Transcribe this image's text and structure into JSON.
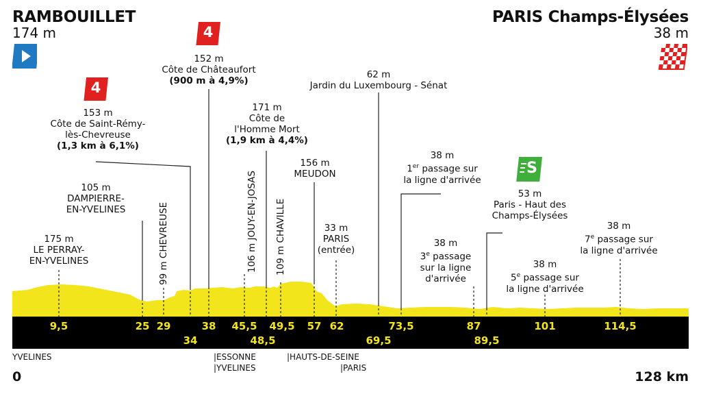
{
  "start": {
    "name": "RAMBOUILLET",
    "altitude": "174 m"
  },
  "finish": {
    "name": "PARIS Champs-Élysées",
    "altitude": "38 m"
  },
  "colors": {
    "profile": "#f3e51b",
    "band": "#000000",
    "km_text": "#f3e51b",
    "climb_badge": "#e0211f",
    "sprint_badge": "#3fae3a",
    "start_flag": "#1f7ac1"
  },
  "icons": {
    "start": "start-play-icon",
    "finish": "checkered-flag-icon",
    "climb": "category-4-climb-icon",
    "sprint": "intermediate-sprint-icon"
  },
  "climb_badges": [
    {
      "label": "4"
    },
    {
      "label": "4"
    }
  ],
  "sprint_badge": {
    "label": "S"
  },
  "labels": {
    "perray": {
      "alt": "175 m",
      "l1": "LE PERRAY-",
      "l2": "EN-YVELINES"
    },
    "dampierre": {
      "alt": "105 m",
      "l1": "DAMPIERRE-",
      "l2": "EN-YVELINES"
    },
    "remy": {
      "alt": "153 m",
      "l1": "Côte de Saint-Rémy-",
      "l2": "lès-Chevreuse",
      "l3": "(1,3 km à 6,1%)"
    },
    "chateaufort": {
      "alt": "152 m",
      "l1": "Côte de Châteaufort",
      "l2": "(900 m à 4,9%)"
    },
    "homme": {
      "alt": "171 m",
      "l1": "Côte de",
      "l2": "l'Homme Mort",
      "l3": "(1,9 km à 4,4%)"
    },
    "meudon": {
      "alt": "156 m",
      "l1": "MEUDON"
    },
    "paris_entree": {
      "alt": "33 m",
      "l1": "PARIS",
      "l2": "(entrée)"
    },
    "luxembourg": {
      "alt": "62 m",
      "l1": "Jardin du Luxembourg - Sénat"
    },
    "passage1": {
      "alt": "38 m",
      "l1a": "1",
      "l1sup": "er",
      "l1b": " passage sur",
      "l2": "la ligne d'arrivée"
    },
    "passage3": {
      "alt": "38 m",
      "l1a": "3",
      "l1sup": "e",
      "l1b": " passage",
      "l2": "sur la ligne",
      "l3": "d'arrivée"
    },
    "sprint": {
      "alt": "53 m",
      "l1": "Paris - Haut des",
      "l2": "Champs-Élysées"
    },
    "passage5": {
      "alt": "38 m",
      "l1a": "5",
      "l1sup": "e",
      "l1b": " passage sur",
      "l2": "la ligne d'arrivée"
    },
    "passage7": {
      "alt": "38 m",
      "l1a": "7",
      "l1sup": "e",
      "l1b": " passage sur",
      "l2": "la ligne d'arrivée"
    }
  },
  "vertical_labels": {
    "chevreuse": "99 m CHEVREUSE",
    "jouy": "106 m JOUY-EN-JOSAS",
    "chaville": "109 m CHAVILLE"
  },
  "km_top": [
    "9,5",
    "25",
    "29",
    "38",
    "45,5",
    "49,5",
    "57",
    "62",
    "73,5",
    "87",
    "101",
    "114,5"
  ],
  "km_bottom": [
    "34",
    "48,5",
    "69,5",
    "89,5"
  ],
  "regions": {
    "yvelines": "YVELINES",
    "essonne": "|ESSONNE",
    "yvelines2": "|YVELINES",
    "hauts": "|HAUTS-DE-SEINE",
    "paris": "|PARIS"
  },
  "distance": {
    "start": "0",
    "end": "128 km"
  }
}
